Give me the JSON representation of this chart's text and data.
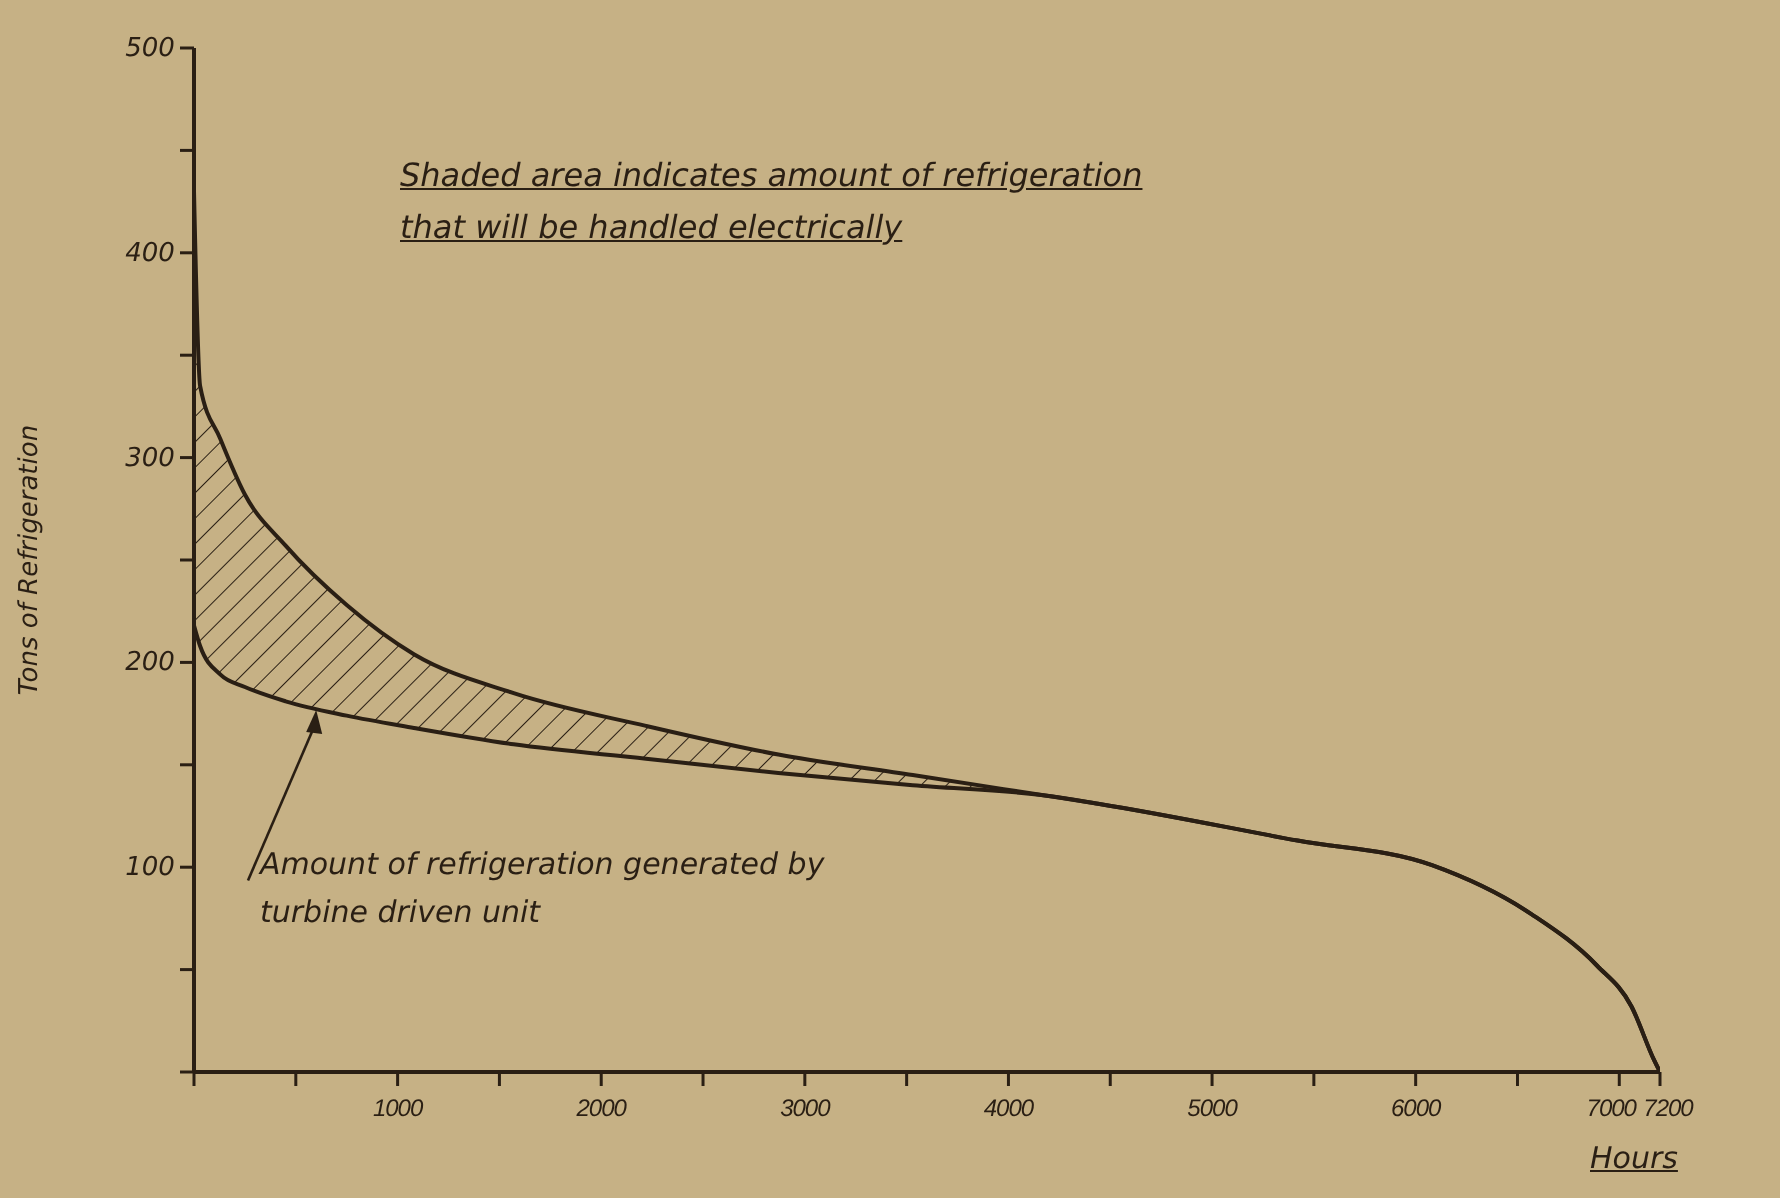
{
  "chart_data": {
    "type": "line",
    "xlabel": "Hours",
    "ylabel": "Tons of Refrigeration",
    "x": [
      0,
      30,
      130,
      250,
      450,
      750,
      1080,
      1570,
      2220,
      2870,
      3530,
      4180,
      4440,
      5420,
      6080,
      6570,
      6890,
      7060,
      7170,
      7200
    ],
    "series": [
      {
        "type": "area",
        "color": "#2a1f14",
        "values": [
          430,
          335,
          309,
          282,
          257,
          228,
          204,
          185,
          169,
          155,
          145,
          135,
          131,
          113,
          101,
          77,
          52,
          32,
          6,
          0
        ]
      },
      {
        "color": "#2a1f14",
        "values": [
          218,
          208,
          194,
          188,
          181,
          174,
          168,
          160,
          153,
          146,
          140,
          135,
          131,
          113,
          101,
          77,
          52,
          32,
          6,
          0
        ]
      }
    ],
    "xlim": [
      0,
      7200
    ],
    "xticks": [
      {
        "value": 0,
        "label": null
      },
      {
        "value": 500,
        "label": null
      },
      1000,
      {
        "value": 1500,
        "label": null
      },
      2000,
      {
        "value": 2500,
        "label": null
      },
      3000,
      {
        "value": 3500,
        "label": null
      },
      4000,
      {
        "value": 4500,
        "label": null
      },
      5000,
      {
        "value": 5500,
        "label": null
      },
      6000,
      {
        "value": 6500,
        "label": null
      },
      7000,
      7200
    ],
    "ylim": [
      0,
      500
    ],
    "yticks": [
      {
        "value": 0,
        "label": null
      },
      {
        "value": 50,
        "label": null
      },
      100,
      {
        "value": 150,
        "label": null
      },
      200,
      {
        "value": 250,
        "label": null
      },
      300,
      {
        "value": 350,
        "label": null
      },
      400,
      {
        "value": 450,
        "label": null
      },
      500
    ],
    "marker": "none",
    "line_style": "solid",
    "annotations": [
      "Shaded area indicates amount of refrigeration that will be handled electrically",
      {
        "text": "Amount of refrigeration generated by turbine driven unit",
        "x": 600,
        "y": 177
      }
    ]
  }
}
